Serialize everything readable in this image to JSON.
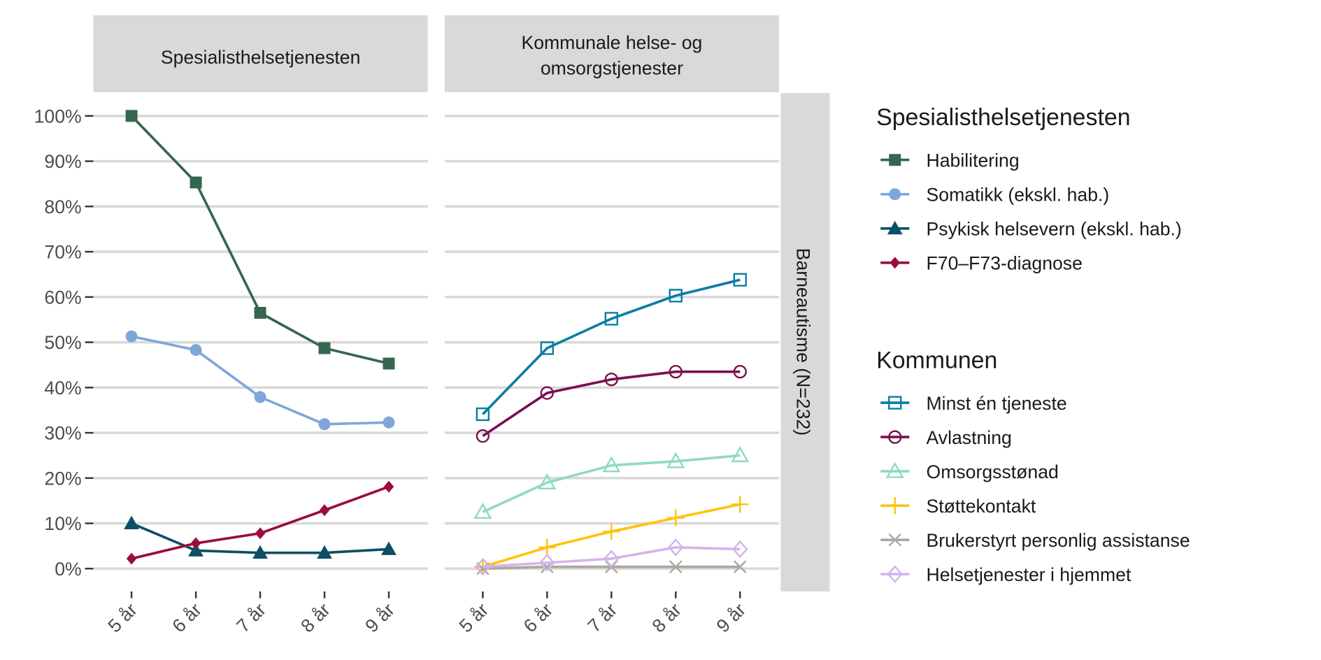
{
  "chart_data": {
    "type": "line",
    "x": [
      "5 år",
      "6 år",
      "7 år",
      "8 år",
      "9 år"
    ],
    "ylim": [
      0,
      100
    ],
    "yticks": [
      "0%",
      "10%",
      "20%",
      "30%",
      "40%",
      "50%",
      "60%",
      "70%",
      "80%",
      "90%",
      "100%"
    ],
    "grid": true,
    "row_strip": "Barneautisme (N=232)",
    "legend_placement": "right",
    "panels": [
      {
        "title": "Spesialisthelsetjenesten",
        "series": [
          {
            "name": "Habilitering",
            "color": "#35664f",
            "shape": "square-filled",
            "values": [
              100,
              85.3,
              56.5,
              48.7,
              45.3
            ]
          },
          {
            "name": "Somatikk (ekskl. hab.)",
            "color": "#7fa6d8",
            "shape": "circle-filled",
            "values": [
              51.3,
              48.3,
              37.9,
              31.9,
              32.3
            ]
          },
          {
            "name": "Psykisk helsevern (ekskl. hab.)",
            "color": "#0b4f66",
            "shape": "triangle-filled",
            "values": [
              10.0,
              4.0,
              3.5,
              3.5,
              4.3
            ]
          },
          {
            "name": "F70–F73-diagnose",
            "color": "#9b0d3a",
            "shape": "diamond-filled",
            "values": [
              2.2,
              5.6,
              7.8,
              12.9,
              18.1
            ]
          }
        ]
      },
      {
        "title": "Kommunale helse- og omsorgstjenester",
        "title_lines": [
          "Kommunale helse- og",
          "omsorgstjenester"
        ],
        "series": [
          {
            "name": "Minst én tjeneste",
            "color": "#0a7ea4",
            "shape": "square-open",
            "values": [
              34.1,
              48.7,
              55.2,
              60.3,
              63.8
            ]
          },
          {
            "name": "Avlastning",
            "color": "#7b1150",
            "shape": "circle-open",
            "values": [
              29.3,
              38.8,
              41.8,
              43.5,
              43.5
            ]
          },
          {
            "name": "Omsorgsstønad",
            "color": "#8fd9c5",
            "shape": "triangle-open",
            "values": [
              12.5,
              19.0,
              22.8,
              23.7,
              25.0
            ]
          },
          {
            "name": "Støttekontakt",
            "color": "#ffc20e",
            "shape": "plus",
            "values": [
              0.4,
              4.7,
              8.2,
              11.2,
              14.2
            ]
          },
          {
            "name": "Brukerstyrt personlig assistanse",
            "color": "#aaa9a0",
            "shape": "cross",
            "values": [
              0.0,
              0.4,
              0.4,
              0.4,
              0.4
            ]
          },
          {
            "name": "Helsetjenester i hjemmet",
            "color": "#d6b3eb",
            "shape": "diamond-open",
            "values": [
              0.4,
              1.3,
              2.2,
              4.7,
              4.3
            ]
          }
        ]
      }
    ],
    "legends": [
      {
        "title": "Spesialisthelsetjenesten",
        "panel": 0
      },
      {
        "title": "Kommunen",
        "panel": 1
      }
    ]
  }
}
